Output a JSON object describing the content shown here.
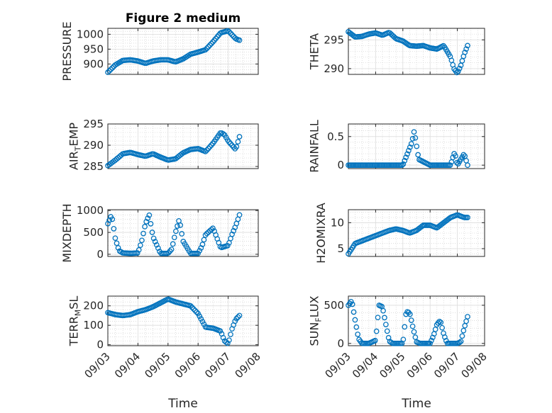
{
  "figure": {
    "title": "Figure 2 medium"
  },
  "chart_data": [
    {
      "type": "scatter",
      "title": "Figure 2 medium",
      "ylabel": "PRESSURE",
      "ylim": [
        865,
        1020
      ],
      "yticks": [
        900,
        950,
        1000
      ],
      "ytick_labels": [
        "900",
        "950",
        "1000"
      ],
      "xlim": [
        "09/03",
        "09/08"
      ],
      "x_tick_labels": [],
      "grid": true,
      "x": [
        "09/03 00:00",
        "09/03 06:00",
        "09/03 12:00",
        "09/03 18:00",
        "09/04 00:00",
        "09/04 06:00",
        "09/04 12:00",
        "09/04 18:00",
        "09/05 00:00",
        "09/05 06:00",
        "09/05 12:00",
        "09/05 18:00",
        "09/06 00:00",
        "09/06 06:00",
        "09/06 12:00",
        "09/06 18:00",
        "09/07 00:00",
        "09/07 06:00",
        "09/07 09:00"
      ],
      "y": [
        872,
        897,
        912,
        914,
        910,
        902,
        910,
        914,
        914,
        907,
        917,
        933,
        940,
        948,
        975,
        1005,
        1012,
        985,
        980
      ]
    },
    {
      "type": "scatter",
      "ylabel": "THETA",
      "ylim": [
        289,
        297
      ],
      "yticks": [
        290,
        295
      ],
      "ytick_labels": [
        "290",
        "295"
      ],
      "xlim": [
        "09/03",
        "09/08"
      ],
      "x_tick_labels": [],
      "grid": true,
      "x": [
        "09/03 00:00",
        "09/03 06:00",
        "09/03 12:00",
        "09/03 18:00",
        "09/04 00:00",
        "09/04 06:00",
        "09/04 12:00",
        "09/04 18:00",
        "09/05 00:00",
        "09/05 06:00",
        "09/05 12:00",
        "09/05 18:00",
        "09/06 00:00",
        "09/06 06:00",
        "09/06 12:00",
        "09/06 18:00",
        "09/06 21:00",
        "09/07 00:00",
        "09/07 03:00",
        "09/07 06:00",
        "09/07 09:00"
      ],
      "y": [
        296.4,
        295.5,
        295.6,
        296.0,
        296.2,
        295.8,
        296.3,
        295.2,
        294.8,
        294.0,
        293.9,
        294.0,
        293.6,
        293.4,
        294.0,
        292.0,
        290.0,
        289.2,
        290.5,
        292.5,
        294.0
      ]
    },
    {
      "type": "scatter",
      "ylabel": "AIR_TEMP",
      "ylim": [
        284.5,
        295
      ],
      "yticks": [
        285,
        290,
        295
      ],
      "ytick_labels": [
        "285",
        "290",
        "295"
      ],
      "xlim": [
        "09/03",
        "09/08"
      ],
      "x_tick_labels": [],
      "grid": true,
      "x": [
        "09/03 00:00",
        "09/03 06:00",
        "09/03 12:00",
        "09/03 18:00",
        "09/04 00:00",
        "09/04 06:00",
        "09/04 12:00",
        "09/04 18:00",
        "09/05 00:00",
        "09/05 06:00",
        "09/05 12:00",
        "09/05 18:00",
        "09/06 00:00",
        "09/06 06:00",
        "09/06 12:00",
        "09/06 18:00",
        "09/06 21:00",
        "09/07 00:00",
        "09/07 06:00",
        "09/07 09:00"
      ],
      "y": [
        285.2,
        286.5,
        288.0,
        288.3,
        287.8,
        287.4,
        288.0,
        287.2,
        286.5,
        286.8,
        288.2,
        289.0,
        289.2,
        288.5,
        290.5,
        293.0,
        292.5,
        291.0,
        289.0,
        292.0
      ]
    },
    {
      "type": "scatter",
      "ylabel": "RAINFALL",
      "ylim": [
        -0.06,
        0.72
      ],
      "yticks": [
        0,
        0.5
      ],
      "ytick_labels": [
        "0",
        "0.5"
      ],
      "xlim": [
        "09/03",
        "09/08"
      ],
      "x_tick_labels": [],
      "grid": true,
      "x": [
        "09/03 00:00",
        "09/03 12:00",
        "09/04 00:00",
        "09/04 12:00",
        "09/05 00:00",
        "09/05 08:00",
        "09/05 09:00",
        "09/05 10:00",
        "09/05 14:00",
        "09/06 00:00",
        "09/06 12:00",
        "09/06 18:00",
        "09/06 21:00",
        "09/06 22:00",
        "09/07 00:00",
        "09/07 06:00",
        "09/07 09:00"
      ],
      "y": [
        0,
        0,
        0,
        0,
        0,
        0.4,
        0.5,
        0.6,
        0.1,
        0,
        0,
        0,
        0.2,
        0.2,
        0,
        0.2,
        0
      ]
    },
    {
      "type": "scatter",
      "ylabel": "MIXDEPTH",
      "ylim": [
        -50,
        1020
      ],
      "yticks": [
        0,
        500,
        1000
      ],
      "ytick_labels": [
        "0",
        "500",
        "1000"
      ],
      "xlim": [
        "09/03",
        "09/08"
      ],
      "x_tick_labels": [],
      "grid": true,
      "x": [
        "09/03 00:00",
        "09/03 03:00",
        "09/03 06:00",
        "09/03 09:00",
        "09/03 12:00",
        "09/03 18:00",
        "09/04 00:00",
        "09/04 03:00",
        "09/04 06:00",
        "09/04 09:00",
        "09/04 12:00",
        "09/04 18:00",
        "09/05 00:00",
        "09/05 03:00",
        "09/05 06:00",
        "09/05 09:00",
        "09/05 12:00",
        "09/05 18:00",
        "09/06 00:00",
        "09/06 03:00",
        "09/06 06:00",
        "09/06 12:00",
        "09/06 18:00",
        "09/07 00:00",
        "09/07 03:00",
        "09/07 06:00",
        "09/07 09:00"
      ],
      "y": [
        700,
        900,
        350,
        80,
        30,
        20,
        30,
        300,
        700,
        900,
        400,
        20,
        20,
        120,
        500,
        800,
        300,
        20,
        20,
        180,
        450,
        600,
        150,
        200,
        450,
        650,
        900
      ]
    },
    {
      "type": "scatter",
      "ylabel": "H2OMIXRA",
      "ylim": [
        3.5,
        12.5
      ],
      "yticks": [
        5,
        10
      ],
      "ytick_labels": [
        "5",
        "10"
      ],
      "xlim": [
        "09/03",
        "09/08"
      ],
      "x_tick_labels": [],
      "grid": true,
      "x": [
        "09/03 00:00",
        "09/03 06:00",
        "09/03 12:00",
        "09/03 18:00",
        "09/04 00:00",
        "09/04 06:00",
        "09/04 12:00",
        "09/04 18:00",
        "09/05 00:00",
        "09/05 06:00",
        "09/05 12:00",
        "09/05 18:00",
        "09/06 00:00",
        "09/06 06:00",
        "09/06 12:00",
        "09/06 18:00",
        "09/07 00:00",
        "09/07 06:00",
        "09/07 09:00"
      ],
      "y": [
        4.0,
        6.0,
        6.5,
        7.0,
        7.5,
        8.0,
        8.5,
        8.8,
        8.5,
        8.0,
        8.5,
        9.5,
        9.5,
        9.0,
        10.0,
        11.0,
        11.5,
        11.0,
        11.0
      ]
    },
    {
      "type": "scatter",
      "ylabel": "TERR_MSL",
      "ylim": [
        -5,
        250
      ],
      "yticks": [
        0,
        100,
        200
      ],
      "ytick_labels": [
        "0",
        "100",
        "200"
      ],
      "xlim": [
        "09/03",
        "09/08"
      ],
      "x_tick_labels": [
        "09/03",
        "09/04",
        "09/05",
        "09/06",
        "09/07",
        "09/08"
      ],
      "xlabel": "Time",
      "grid": true,
      "x": [
        "09/03 00:00",
        "09/03 06:00",
        "09/03 12:00",
        "09/03 18:00",
        "09/04 00:00",
        "09/04 06:00",
        "09/04 12:00",
        "09/04 18:00",
        "09/05 00:00",
        "09/05 06:00",
        "09/05 12:00",
        "09/05 18:00",
        "09/06 00:00",
        "09/06 06:00",
        "09/06 12:00",
        "09/06 18:00",
        "09/06 21:00",
        "09/07 00:00",
        "09/07 03:00",
        "09/07 06:00",
        "09/07 09:00"
      ],
      "y": [
        165,
        155,
        150,
        155,
        170,
        180,
        195,
        215,
        235,
        220,
        210,
        200,
        160,
        90,
        85,
        70,
        20,
        5,
        80,
        130,
        150
      ]
    },
    {
      "type": "scatter",
      "ylabel": "SUN_FLUX",
      "ylim": [
        -30,
        620
      ],
      "yticks": [
        0,
        500
      ],
      "ytick_labels": [
        "0",
        "500"
      ],
      "xlim": [
        "09/03",
        "09/08"
      ],
      "x_tick_labels": [
        "09/03",
        "09/04",
        "09/05",
        "09/06",
        "09/07",
        "09/08"
      ],
      "xlabel": "Time",
      "grid": true,
      "x": [
        "09/03 00:00",
        "09/03 03:00",
        "09/03 06:00",
        "09/03 09:00",
        "09/03 12:00",
        "09/03 15:00",
        "09/03 18:00",
        "09/04 00:00",
        "09/04 03:00",
        "09/04 06:00",
        "09/04 09:00",
        "09/04 12:00",
        "09/04 15:00",
        "09/05 00:00",
        "09/05 03:00",
        "09/05 06:00",
        "09/05 09:00",
        "09/05 12:00",
        "09/05 15:00",
        "09/06 00:00",
        "09/06 03:00",
        "09/06 06:00",
        "09/06 09:00",
        "09/06 12:00",
        "09/06 15:00",
        "09/07 00:00",
        "09/07 03:00",
        "09/07 06:00",
        "09/07 09:00"
      ],
      "y": [
        500,
        560,
        300,
        60,
        0,
        0,
        0,
        40,
        500,
        480,
        250,
        30,
        0,
        0,
        420,
        400,
        200,
        20,
        0,
        0,
        100,
        250,
        300,
        120,
        0,
        0,
        20,
        200,
        350
      ]
    }
  ]
}
